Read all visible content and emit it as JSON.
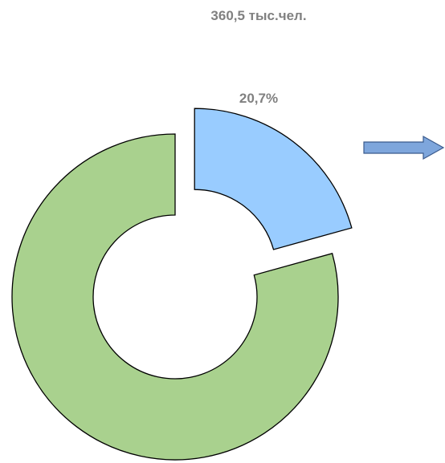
{
  "chart_data": {
    "type": "donut",
    "values": [
      20.7,
      79.3
    ],
    "value_labels": [
      "20,7%",
      null
    ],
    "counts": [
      360.5,
      null
    ],
    "count_labels": [
      "360,5 тыс.чел.",
      null
    ],
    "colors": [
      "#99ccff",
      "#a9d18e"
    ],
    "explode": [
      true,
      false
    ]
  }
}
